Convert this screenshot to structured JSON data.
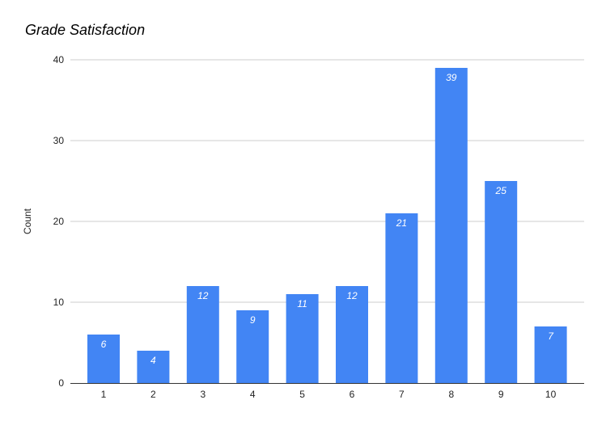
{
  "chart_data": {
    "type": "bar",
    "title": "Grade Satisfaction",
    "xlabel": "",
    "ylabel": "Count",
    "categories": [
      "1",
      "2",
      "3",
      "4",
      "5",
      "6",
      "7",
      "8",
      "9",
      "10"
    ],
    "values": [
      6,
      4,
      12,
      9,
      11,
      12,
      21,
      39,
      25,
      7
    ],
    "data_labels": [
      "6",
      "4",
      "12",
      "9",
      "11",
      "12",
      "21",
      "39",
      "25",
      "7"
    ],
    "ylim": [
      0,
      40
    ],
    "yticks": [
      0,
      10,
      20,
      30,
      40
    ],
    "ytick_labels": [
      "0",
      "10",
      "20",
      "30",
      "40"
    ],
    "grid": true,
    "legend": "none",
    "colors": {
      "bar": "#4285f4",
      "grid": "#cccccc",
      "axis": "#333333",
      "label": "#ffffff",
      "tick_text": "#222222"
    }
  }
}
